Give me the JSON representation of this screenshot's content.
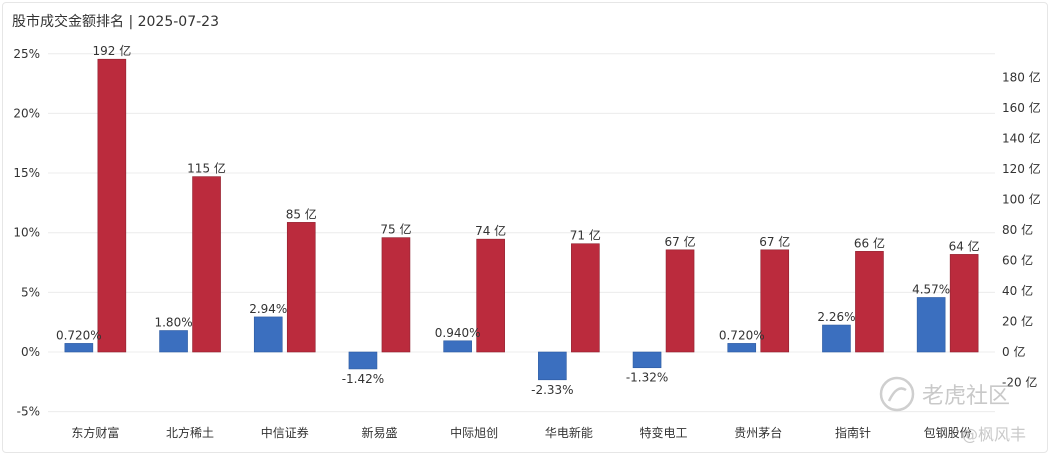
{
  "title": "股市成交金额排名 | 2025-07-23",
  "colors": {
    "pct": "#3b6fbf",
    "amount": "#bb2b3d",
    "grid": "#ececec"
  },
  "watermark": {
    "text": "老虎社区",
    "sub": "@枫风丰",
    "icon": "tiger-logo-icon"
  },
  "chart_data": {
    "type": "bar",
    "title": "股市成交金额排名 | 2025-07-23",
    "categories": [
      "东方财富",
      "北方稀土",
      "中信证券",
      "新易盛",
      "中际旭创",
      "华电新能",
      "特变电工",
      "贵州茅台",
      "指南针",
      "包钢股份"
    ],
    "series": [
      {
        "axis": "left",
        "values": [
          0.72,
          1.8,
          2.94,
          -1.42,
          0.94,
          -2.33,
          -1.32,
          0.72,
          2.26,
          4.57
        ],
        "labels": [
          "0.720%",
          "1.80%",
          "2.94%",
          "-1.42%",
          "0.940%",
          "-2.33%",
          "-1.32%",
          "0.720%",
          "2.26%",
          "4.57%"
        ]
      },
      {
        "axis": "right",
        "values": [
          192,
          115,
          85,
          75,
          74,
          71,
          67,
          67,
          66,
          64
        ],
        "labels": [
          "192 亿",
          "115 亿",
          "85 亿",
          "75 亿",
          "74 亿",
          "71 亿",
          "67 亿",
          "67 亿",
          "66 亿",
          "64 亿"
        ]
      }
    ],
    "left_axis": {
      "range": [
        -5,
        25
      ],
      "ticks": [
        -5,
        0,
        5,
        10,
        15,
        20,
        25
      ],
      "tick_labels": [
        "-5%",
        "0%",
        "5%",
        "10%",
        "15%",
        "20%",
        "25%"
      ]
    },
    "right_axis": {
      "range": [
        -20,
        200
      ],
      "ticks": [
        -20,
        0,
        20,
        40,
        60,
        80,
        100,
        120,
        140,
        160,
        180
      ],
      "tick_labels": [
        "-20 亿",
        "0 亿",
        "20 亿",
        "40 亿",
        "60 亿",
        "80 亿",
        "100 亿",
        "120 亿",
        "140 亿",
        "160 亿",
        "180 亿"
      ]
    },
    "grid": true,
    "legend": "none"
  }
}
